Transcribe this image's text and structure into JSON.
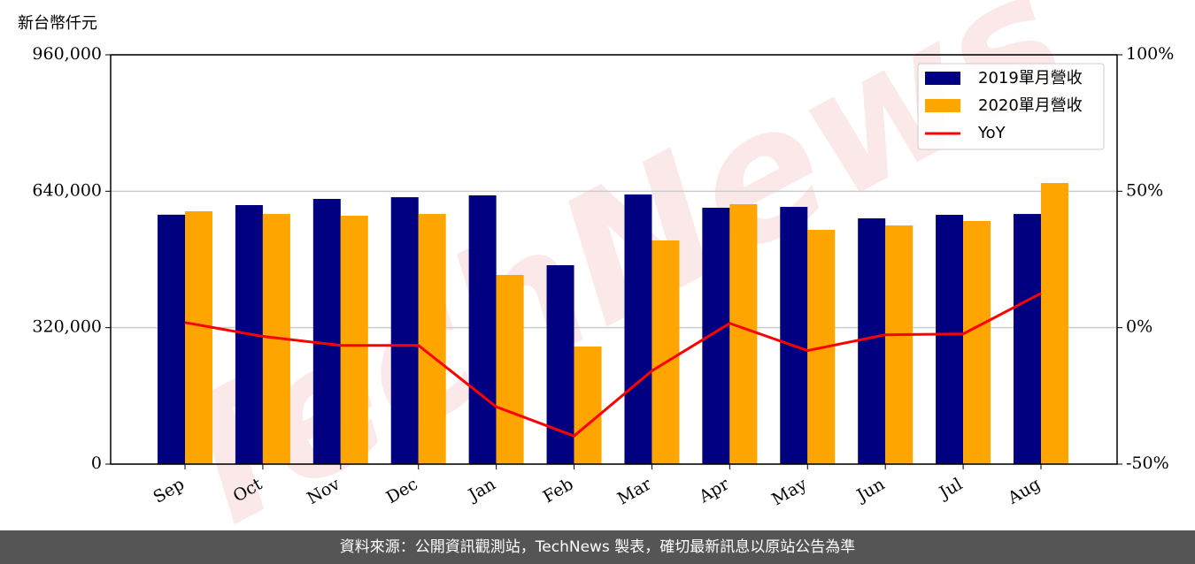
{
  "chart_data": {
    "type": "bar_line",
    "y_unit_label": "新台幣仟元",
    "categories": [
      "Sep",
      "Oct",
      "Nov",
      "Dec",
      "Jan",
      "Feb",
      "Mar",
      "Apr",
      "May",
      "Jun",
      "Jul",
      "Aug"
    ],
    "series": [
      {
        "name": "2019單月營收",
        "type": "bar",
        "color": "#000080",
        "values": [
          585000,
          607500,
          622000,
          626000,
          630300,
          466500,
          632400,
          601300,
          603300,
          576400,
          584700,
          586700
        ]
      },
      {
        "name": "2020單月營收",
        "type": "bar",
        "color": "#ffa500",
        "values": [
          593000,
          586700,
          582600,
          586700,
          443700,
          275800,
          524600,
          609600,
          549400,
          559800,
          570200,
          659300
        ]
      },
      {
        "name": "YoY",
        "type": "line",
        "axis": "y2",
        "color": "#ff0000",
        "values": [
          1.9,
          -3.2,
          -6.5,
          -6.5,
          -29,
          -39.7,
          -15.8,
          1.6,
          -8.4,
          -2.6,
          -2.3,
          12.6
        ]
      }
    ],
    "ylim": [
      0,
      960000
    ],
    "yticks": [
      0,
      {
        "value": 320000,
        "label": "320,000"
      },
      {
        "value": 640000,
        "label": "640,000"
      },
      {
        "value": 960000,
        "label": "960,000"
      }
    ],
    "y2lim": [
      -50,
      100
    ],
    "y2ticks": [
      {
        "value": -50,
        "label": "-50%"
      },
      {
        "value": 0,
        "label": "0%"
      },
      {
        "value": 50,
        "label": "50%"
      },
      {
        "value": 100,
        "label": "100%"
      }
    ],
    "grid": true,
    "legend": "upper right",
    "watermark": "TechNews",
    "footer": "資料來源：公開資訊觀測站，TechNews 製表，確切最新訊息以原站公告為準"
  }
}
